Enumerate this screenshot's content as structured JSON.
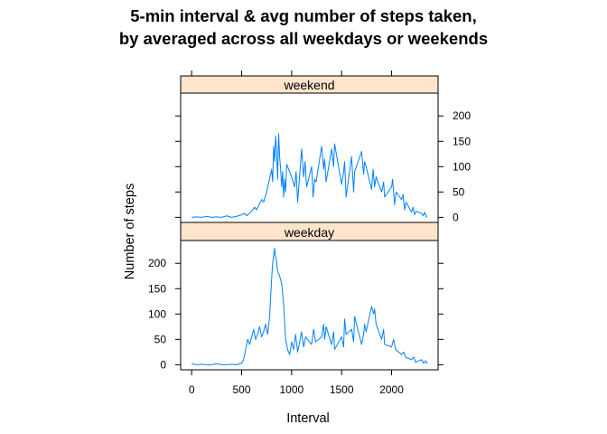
{
  "chart_data": {
    "type": "line",
    "title_line1": "5-min interval & avg number of steps taken,",
    "title_line2": "by averaged across all weekdays or weekends",
    "xlabel": "Interval",
    "ylabel": "Number of steps",
    "xlim": [
      -110,
      2465
    ],
    "ylim": [
      -10,
      245
    ],
    "x_ticks": [
      0,
      500,
      1000,
      1500,
      2000
    ],
    "y_ticks": [
      0,
      50,
      100,
      150,
      200
    ],
    "line_color": "#0080ff",
    "strip_color": "#ffe5cc",
    "panels": [
      {
        "name": "weekend",
        "x": [
          0,
          50,
          100,
          150,
          200,
          250,
          300,
          350,
          400,
          450,
          500,
          530,
          550,
          600,
          630,
          650,
          700,
          720,
          750,
          800,
          810,
          820,
          830,
          840,
          850,
          860,
          870,
          880,
          890,
          900,
          910,
          920,
          930,
          940,
          950,
          1000,
          1030,
          1045,
          1060,
          1100,
          1120,
          1135,
          1150,
          1200,
          1215,
          1230,
          1245,
          1300,
          1320,
          1330,
          1345,
          1400,
          1420,
          1430,
          1500,
          1520,
          1530,
          1545,
          1600,
          1620,
          1630,
          1700,
          1720,
          1730,
          1745,
          1800,
          1815,
          1830,
          1845,
          1900,
          1920,
          1930,
          2000,
          2010,
          2030,
          2045,
          2100,
          2115,
          2130,
          2145,
          2200,
          2215,
          2230,
          2245,
          2300,
          2315,
          2330,
          2345,
          2355
        ],
        "y": [
          0,
          1,
          0,
          2,
          0,
          1,
          0,
          3,
          0,
          2,
          5,
          8,
          3,
          12,
          20,
          15,
          35,
          30,
          50,
          95,
          70,
          140,
          110,
          160,
          130,
          75,
          165,
          120,
          95,
          60,
          90,
          40,
          75,
          50,
          105,
          80,
          60,
          90,
          30,
          135,
          80,
          110,
          60,
          100,
          40,
          75,
          70,
          140,
          95,
          115,
          70,
          135,
          100,
          145,
          65,
          90,
          110,
          40,
          120,
          50,
          90,
          130,
          85,
          110,
          100,
          55,
          95,
          60,
          80,
          50,
          70,
          40,
          60,
          75,
          25,
          50,
          35,
          45,
          15,
          30,
          10,
          20,
          5,
          12,
          8,
          3,
          10,
          2,
          0
        ],
        "color": "#0080ff"
      },
      {
        "name": "weekday",
        "x": [
          0,
          50,
          100,
          150,
          200,
          250,
          300,
          350,
          400,
          450,
          500,
          520,
          540,
          560,
          580,
          600,
          620,
          640,
          660,
          680,
          700,
          720,
          740,
          760,
          780,
          800,
          810,
          820,
          830,
          835,
          845,
          860,
          880,
          900,
          920,
          940,
          960,
          980,
          1000,
          1020,
          1040,
          1060,
          1100,
          1120,
          1140,
          1200,
          1220,
          1240,
          1300,
          1320,
          1330,
          1345,
          1400,
          1420,
          1430,
          1500,
          1520,
          1530,
          1545,
          1600,
          1620,
          1630,
          1700,
          1720,
          1730,
          1745,
          1800,
          1820,
          1830,
          1845,
          1900,
          1920,
          1930,
          2000,
          2020,
          2040,
          2100,
          2120,
          2140,
          2200,
          2220,
          2240,
          2300,
          2320,
          2340,
          2355
        ],
        "y": [
          2,
          0,
          1,
          0,
          0,
          2,
          0,
          0,
          1,
          0,
          3,
          10,
          30,
          50,
          40,
          55,
          70,
          50,
          60,
          75,
          55,
          65,
          80,
          60,
          95,
          170,
          200,
          215,
          230,
          215,
          210,
          185,
          175,
          160,
          120,
          50,
          30,
          20,
          45,
          30,
          60,
          25,
          65,
          35,
          55,
          40,
          70,
          45,
          55,
          80,
          50,
          75,
          40,
          65,
          30,
          55,
          35,
          90,
          60,
          70,
          45,
          95,
          40,
          60,
          80,
          65,
          115,
          100,
          110,
          80,
          50,
          70,
          40,
          35,
          50,
          30,
          20,
          25,
          15,
          10,
          15,
          5,
          10,
          3,
          8,
          2
        ],
        "color": "#0080ff"
      }
    ]
  }
}
